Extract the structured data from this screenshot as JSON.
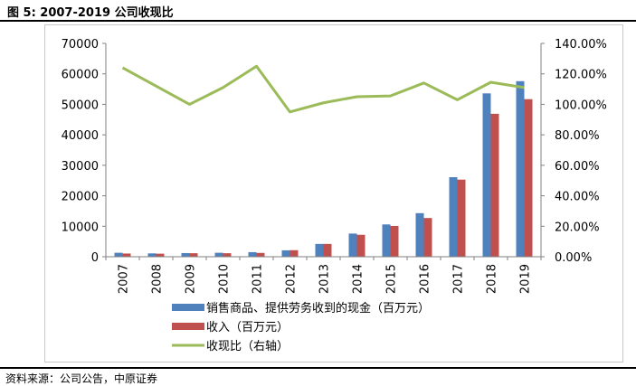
{
  "figure": {
    "title": "图 5: 2007-2019 公司收现比",
    "source": "资料来源：公司公告，中原证券"
  },
  "colors": {
    "series1": "#4f81bd",
    "series2": "#c0504d",
    "series3": "#9bbb59",
    "axis": "#808080"
  },
  "chart_data": {
    "type": "bar",
    "categories": [
      "2007",
      "2008",
      "2009",
      "2010",
      "2011",
      "2012",
      "2013",
      "2014",
      "2015",
      "2016",
      "2017",
      "2018",
      "2019"
    ],
    "series": [
      {
        "name": "销售商品、提供劳务收到的现金（百万元）",
        "type": "bar",
        "axis": "left",
        "values": [
          1300,
          1100,
          1200,
          1300,
          1500,
          2100,
          4200,
          7600,
          10600,
          14300,
          26100,
          53600,
          57600
        ]
      },
      {
        "name": "收入（百万元）",
        "type": "bar",
        "axis": "left",
        "values": [
          1050,
          1000,
          1150,
          1150,
          1250,
          2150,
          4200,
          7200,
          10100,
          12700,
          25300,
          46900,
          51700
        ]
      },
      {
        "name": "收现比（右轴）",
        "type": "line",
        "axis": "right",
        "values": [
          1.24,
          1.12,
          1.0,
          1.11,
          1.25,
          0.95,
          1.01,
          1.05,
          1.055,
          1.14,
          1.03,
          1.145,
          1.11
        ]
      }
    ],
    "ylim": [
      0,
      70000
    ],
    "y_ticks": [
      "0",
      "10000",
      "20000",
      "30000",
      "40000",
      "50000",
      "60000",
      "70000"
    ],
    "y2lim": [
      0,
      1.4
    ],
    "y2_ticks": [
      "0.00%",
      "20.00%",
      "40.00%",
      "60.00%",
      "80.00%",
      "100.00%",
      "120.00%",
      "140.00%"
    ],
    "grid": false,
    "legend_position": "bottom"
  }
}
